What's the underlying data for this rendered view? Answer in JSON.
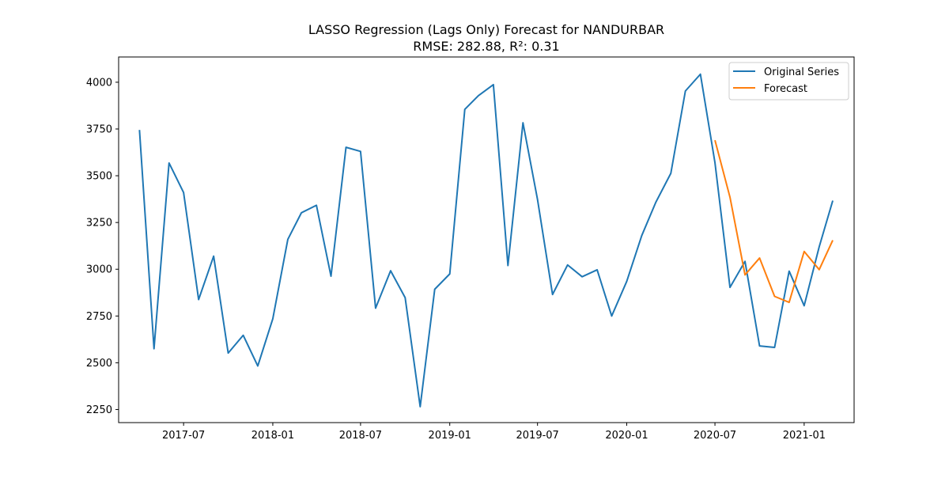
{
  "chart_data": {
    "type": "line",
    "title": "LASSO Regression (Lags Only) Forecast for NANDURBAR",
    "subtitle": "RMSE: 282.88, R²: 0.31",
    "xlabel": "",
    "ylabel": "",
    "x_ticks": [
      "2017-07",
      "2018-01",
      "2018-07",
      "2019-01",
      "2019-07",
      "2020-01",
      "2020-07",
      "2021-01"
    ],
    "y_ticks": [
      2250,
      2500,
      2750,
      3000,
      3250,
      3500,
      3750,
      4000
    ],
    "xlim": [
      "2017-02-17",
      "2021-04-14"
    ],
    "ylim": [
      2180,
      4135
    ],
    "grid": false,
    "legend_position": "top-right",
    "series": [
      {
        "name": "Original Series",
        "color": "#1f77b4",
        "points": [
          [
            "2017-04",
            3745
          ],
          [
            "2017-05",
            2575
          ],
          [
            "2017-06",
            3568
          ],
          [
            "2017-07",
            3410
          ],
          [
            "2017-08",
            2838
          ],
          [
            "2017-09",
            3070
          ],
          [
            "2017-10",
            2552
          ],
          [
            "2017-11",
            2647
          ],
          [
            "2017-12",
            2483
          ],
          [
            "2018-01",
            2735
          ],
          [
            "2018-02",
            3160
          ],
          [
            "2018-03",
            3302
          ],
          [
            "2018-04",
            3342
          ],
          [
            "2018-05",
            2963
          ],
          [
            "2018-06",
            3652
          ],
          [
            "2018-07",
            3630
          ],
          [
            "2018-08",
            2792
          ],
          [
            "2018-09",
            2992
          ],
          [
            "2018-10",
            2848
          ],
          [
            "2018-11",
            2265
          ],
          [
            "2018-12",
            2893
          ],
          [
            "2019-01",
            2975
          ],
          [
            "2019-02",
            3855
          ],
          [
            "2019-03",
            3928
          ],
          [
            "2019-04",
            3987
          ],
          [
            "2019-05",
            3020
          ],
          [
            "2019-06",
            3783
          ],
          [
            "2019-07",
            3373
          ],
          [
            "2019-08",
            2865
          ],
          [
            "2019-09",
            3023
          ],
          [
            "2019-10",
            2960
          ],
          [
            "2019-11",
            2997
          ],
          [
            "2019-12",
            2750
          ],
          [
            "2020-01",
            2935
          ],
          [
            "2020-02",
            3180
          ],
          [
            "2020-03",
            3358
          ],
          [
            "2020-04",
            3513
          ],
          [
            "2020-05",
            3953
          ],
          [
            "2020-06",
            4043
          ],
          [
            "2020-07",
            3570
          ],
          [
            "2020-08",
            2903
          ],
          [
            "2020-09",
            3042
          ],
          [
            "2020-10",
            2590
          ],
          [
            "2020-11",
            2582
          ],
          [
            "2020-12",
            2990
          ],
          [
            "2021-01",
            2805
          ],
          [
            "2021-02",
            3120
          ],
          [
            "2021-03",
            3367
          ]
        ]
      },
      {
        "name": "Forecast",
        "color": "#ff7f0e",
        "points": [
          [
            "2020-07",
            3690
          ],
          [
            "2020-08",
            3385
          ],
          [
            "2020-09",
            2970
          ],
          [
            "2020-10",
            3060
          ],
          [
            "2020-11",
            2855
          ],
          [
            "2020-12",
            2823
          ],
          [
            "2021-01",
            3095
          ],
          [
            "2021-02",
            2998
          ],
          [
            "2021-03",
            3155
          ]
        ]
      }
    ]
  }
}
